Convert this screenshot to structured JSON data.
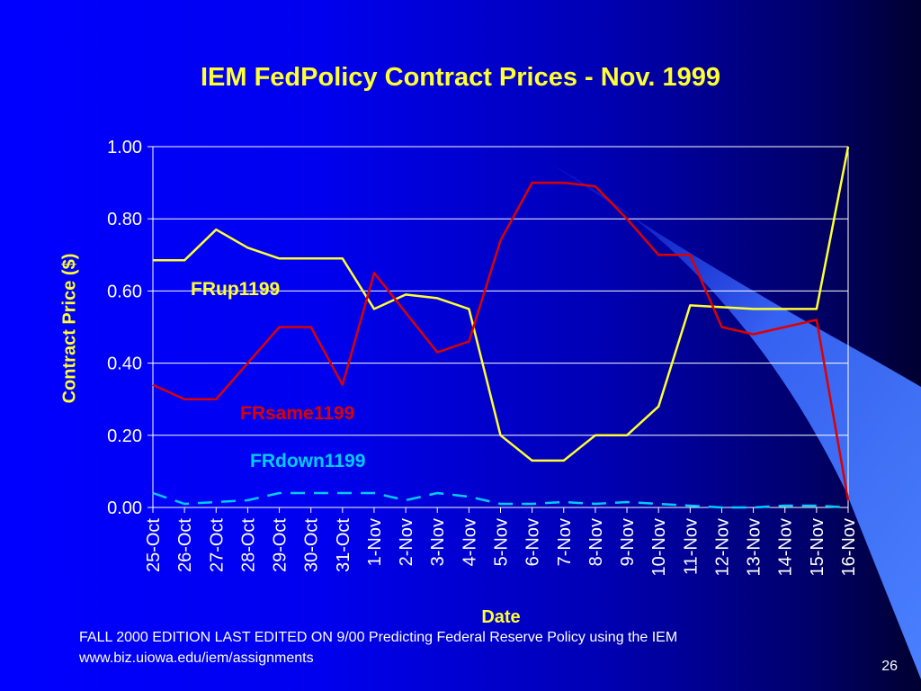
{
  "colors": {
    "title": "#ffff33",
    "axis_label": "#ffff33",
    "tick": "#ffffff",
    "grid": "#ffffff",
    "frup": "#ffff33",
    "frsame": "#dd0000",
    "frdown": "#00ccff",
    "accent_band": "#3c6cff"
  },
  "footer": {
    "line1": "FALL 2000  EDITION LAST EDITED ON 9/00  Predicting Federal Reserve Policy using the IEM",
    "line2": "www.biz.uiowa.edu/iem/assignments"
  },
  "page_number": "26",
  "chart_data": {
    "type": "line",
    "title": "IEM FedPolicy Contract Prices - Nov. 1999",
    "xlabel": "Date",
    "ylabel": "Contract Price ($)",
    "ylim": [
      0,
      1
    ],
    "y_ticks": [
      "0.00",
      "0.20",
      "0.40",
      "0.60",
      "0.80",
      "1.00"
    ],
    "grid": true,
    "x": [
      "25-Oct",
      "26-Oct",
      "27-Oct",
      "28-Oct",
      "29-Oct",
      "30-Oct",
      "31-Oct",
      "1-Nov",
      "2-Nov",
      "3-Nov",
      "4-Nov",
      "5-Nov",
      "6-Nov",
      "7-Nov",
      "8-Nov",
      "9-Nov",
      "10-Nov",
      "11-Nov",
      "12-Nov",
      "13-Nov",
      "14-Nov",
      "15-Nov",
      "16-Nov"
    ],
    "series": [
      {
        "name": "FRup1199",
        "color_key": "frup",
        "style": "solid",
        "values": [
          0.685,
          0.685,
          0.77,
          0.72,
          0.69,
          0.69,
          0.69,
          0.55,
          0.59,
          0.58,
          0.55,
          0.2,
          0.13,
          0.13,
          0.2,
          0.2,
          0.28,
          0.56,
          0.555,
          0.55,
          0.55,
          0.55,
          1.0
        ]
      },
      {
        "name": "FRsame1199",
        "color_key": "frsame",
        "style": "solid",
        "values": [
          0.34,
          0.3,
          0.3,
          0.4,
          0.5,
          0.5,
          0.34,
          0.65,
          0.54,
          0.43,
          0.46,
          0.74,
          0.9,
          0.9,
          0.89,
          0.8,
          0.7,
          0.7,
          0.5,
          0.48,
          0.5,
          0.52,
          0.02
        ]
      },
      {
        "name": "FRdown1199",
        "color_key": "frdown",
        "style": "dashed",
        "values": [
          0.04,
          0.01,
          0.015,
          0.02,
          0.04,
          0.04,
          0.04,
          0.04,
          0.02,
          0.04,
          0.03,
          0.01,
          0.01,
          0.015,
          0.01,
          0.015,
          0.01,
          0.005,
          0.0,
          0.0,
          0.005,
          0.005,
          0.0
        ]
      }
    ]
  }
}
